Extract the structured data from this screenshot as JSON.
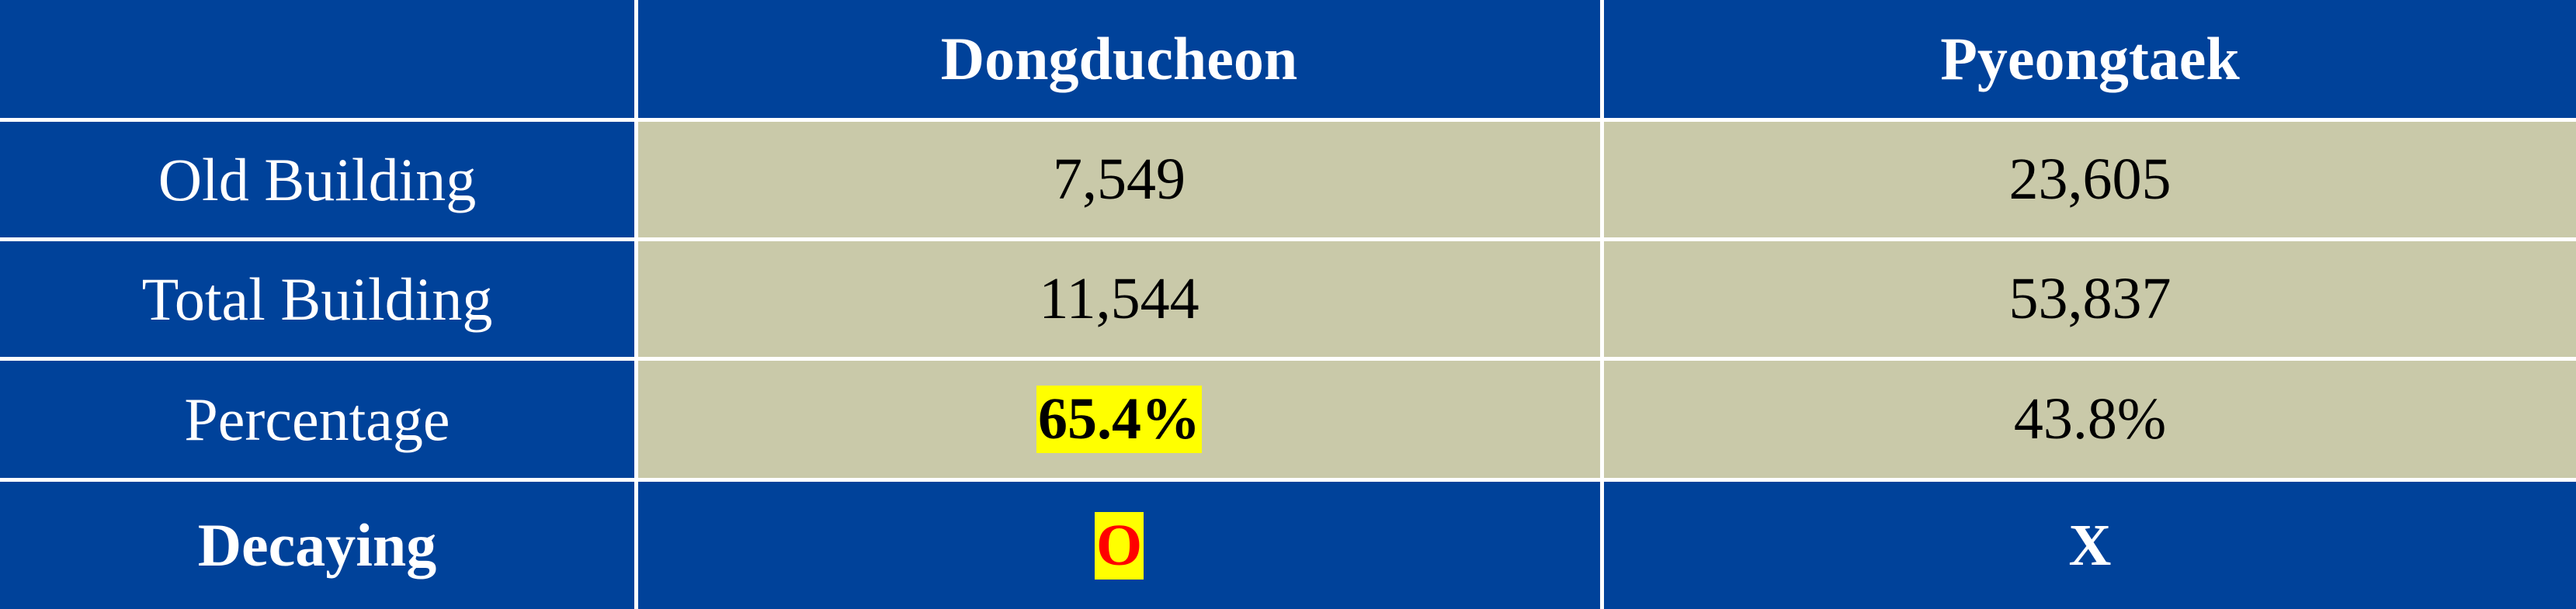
{
  "table": {
    "header": {
      "corner": "",
      "col1": "Dongducheon",
      "col2": "Pyeongtaek"
    },
    "rows": [
      {
        "label": "Old Building",
        "dongducheon": "7,549",
        "pyeongtaek": "23,605"
      },
      {
        "label": "Total Building",
        "dongducheon": "11,544",
        "pyeongtaek": "53,837"
      },
      {
        "label": "Percentage",
        "dongducheon": "65.4%",
        "pyeongtaek": "43.8%"
      },
      {
        "label": "Decaying",
        "dongducheon": "O",
        "pyeongtaek": "X"
      }
    ]
  },
  "colors": {
    "header_bg": "#00429a",
    "data_bg": "#c9c9a9",
    "highlight": "#ffff00",
    "marker_red": "#ff0000"
  }
}
